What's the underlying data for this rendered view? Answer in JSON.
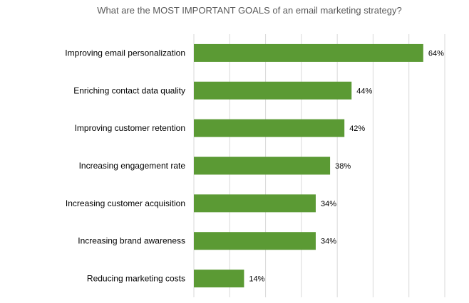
{
  "chart_data": {
    "type": "bar",
    "orientation": "horizontal",
    "title": "What are the MOST IMPORTANT GOALS of an email marketing strategy?",
    "categories": [
      "Improving email personalization",
      "Enriching contact data quality",
      "Improving customer retention",
      "Increasing engagement rate",
      "Increasing customer acquisition",
      "Increasing brand awareness",
      "Reducing marketing costs"
    ],
    "values": [
      64,
      44,
      42,
      38,
      34,
      34,
      14
    ],
    "value_labels": [
      "64%",
      "44%",
      "42%",
      "38%",
      "34%",
      "34%",
      "14%"
    ],
    "xlim": [
      0,
      70
    ],
    "grid": true,
    "legend": "none",
    "bar_color": "#5b9a34",
    "grid_color": "#d9d9d9"
  }
}
